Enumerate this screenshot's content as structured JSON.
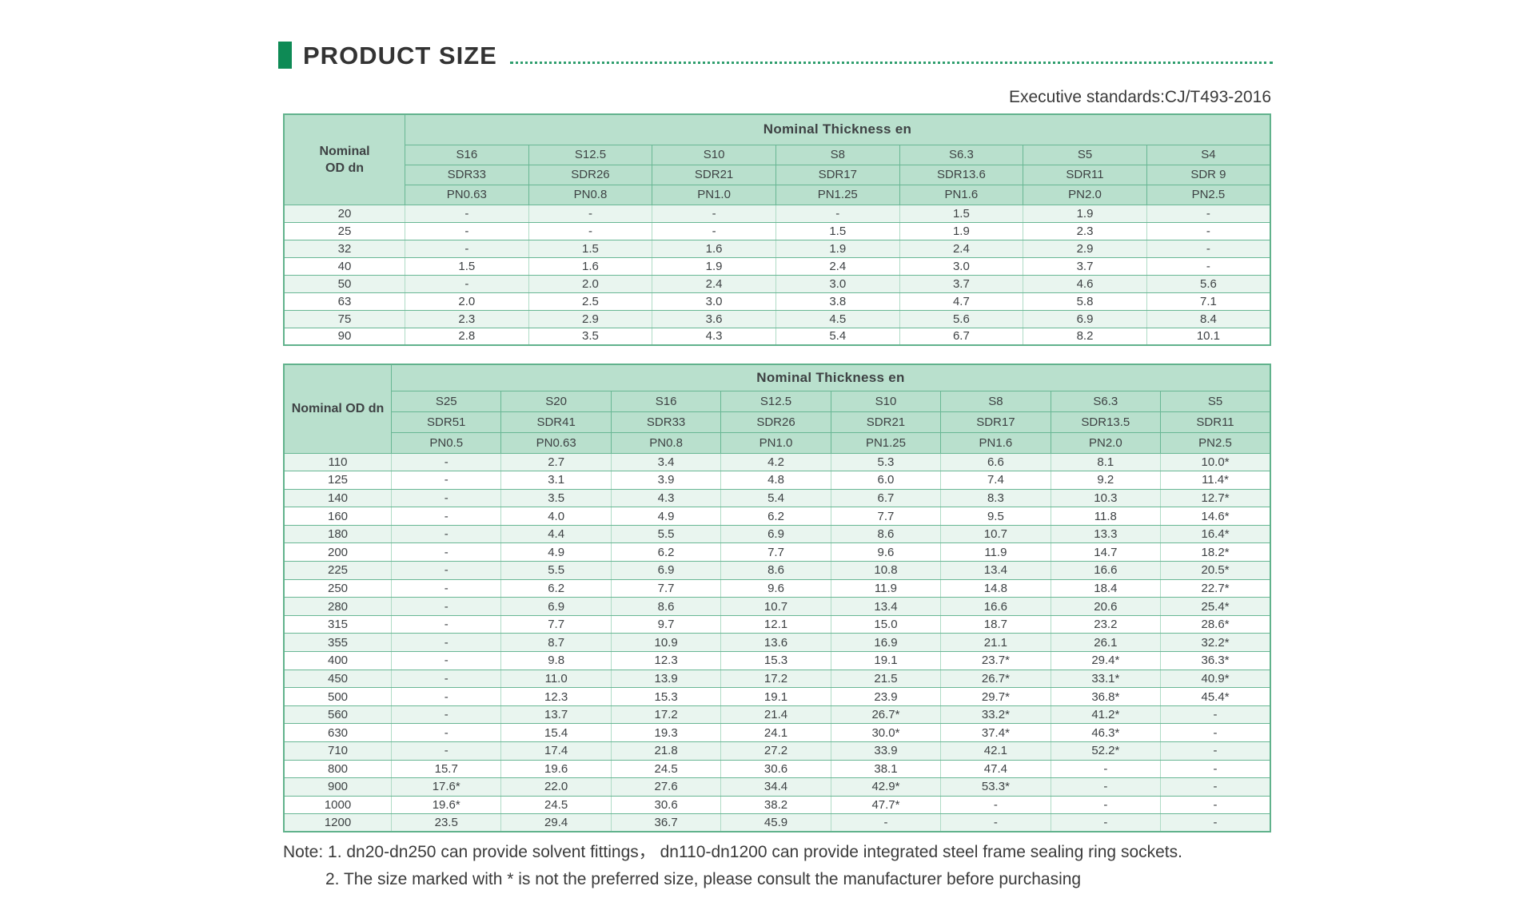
{
  "page": {
    "title": "PRODUCT SIZE",
    "standard": "Executive standards:CJ/T493-2016",
    "notes": [
      "Note: 1. dn20-dn250 can provide solvent fittings， dn110-dn1200 can provide integrated steel frame sealing ring sockets.",
      "2. The size marked with * is not the preferred size, please consult the manufacturer before purchasing"
    ]
  },
  "colors": {
    "accent_green": "#0e8a55",
    "dotted_leader_green": "#2f9e6e",
    "table_border_green": "#68b794",
    "header_bg": "#b9e0cd",
    "row_alt_bg": "#e9f5ef",
    "text": "#3e4244"
  },
  "tables": [
    {
      "corner_label_lines": [
        "Nominal",
        "OD dn"
      ],
      "span_header": "Nominal Thickness en",
      "s_row": [
        "S16",
        "S12.5",
        "S10",
        "S8",
        "S6.3",
        "S5",
        "S4"
      ],
      "sdr_row": [
        "SDR33",
        "SDR26",
        "SDR21",
        "SDR17",
        "SDR13.6",
        "SDR11",
        "SDR 9"
      ],
      "pn_row": [
        "PN0.63",
        "PN0.8",
        "PN1.0",
        "PN1.25",
        "PN1.6",
        "PN2.0",
        "PN2.5"
      ],
      "rows": [
        {
          "dn": "20",
          "values": [
            "-",
            "-",
            "-",
            "-",
            "1.5",
            "1.9",
            "-"
          ]
        },
        {
          "dn": "25",
          "values": [
            "-",
            "-",
            "-",
            "1.5",
            "1.9",
            "2.3",
            "-"
          ]
        },
        {
          "dn": "32",
          "values": [
            "-",
            "1.5",
            "1.6",
            "1.9",
            "2.4",
            "2.9",
            "-"
          ]
        },
        {
          "dn": "40",
          "values": [
            "1.5",
            "1.6",
            "1.9",
            "2.4",
            "3.0",
            "3.7",
            "-"
          ]
        },
        {
          "dn": "50",
          "values": [
            "-",
            "2.0",
            "2.4",
            "3.0",
            "3.7",
            "4.6",
            "5.6"
          ]
        },
        {
          "dn": "63",
          "values": [
            "2.0",
            "2.5",
            "3.0",
            "3.8",
            "4.7",
            "5.8",
            "7.1"
          ]
        },
        {
          "dn": "75",
          "values": [
            "2.3",
            "2.9",
            "3.6",
            "4.5",
            "5.6",
            "6.9",
            "8.4"
          ]
        },
        {
          "dn": "90",
          "values": [
            "2.8",
            "3.5",
            "4.3",
            "5.4",
            "6.7",
            "8.2",
            "10.1"
          ]
        }
      ]
    },
    {
      "corner_label_lines": [
        "Nominal OD dn"
      ],
      "span_header": "Nominal Thickness en",
      "s_row": [
        "S25",
        "S20",
        "S16",
        "S12.5",
        "S10",
        "S8",
        "S6.3",
        "S5"
      ],
      "sdr_row": [
        "SDR51",
        "SDR41",
        "SDR33",
        "SDR26",
        "SDR21",
        "SDR17",
        "SDR13.5",
        "SDR11"
      ],
      "pn_row": [
        "PN0.5",
        "PN0.63",
        "PN0.8",
        "PN1.0",
        "PN1.25",
        "PN1.6",
        "PN2.0",
        "PN2.5"
      ],
      "rows": [
        {
          "dn": "110",
          "values": [
            "-",
            "2.7",
            "3.4",
            "4.2",
            "5.3",
            "6.6",
            "8.1",
            "10.0*"
          ]
        },
        {
          "dn": "125",
          "values": [
            "-",
            "3.1",
            "3.9",
            "4.8",
            "6.0",
            "7.4",
            "9.2",
            "11.4*"
          ]
        },
        {
          "dn": "140",
          "values": [
            "-",
            "3.5",
            "4.3",
            "5.4",
            "6.7",
            "8.3",
            "10.3",
            "12.7*"
          ]
        },
        {
          "dn": "160",
          "values": [
            "-",
            "4.0",
            "4.9",
            "6.2",
            "7.7",
            "9.5",
            "11.8",
            "14.6*"
          ]
        },
        {
          "dn": "180",
          "values": [
            "-",
            "4.4",
            "5.5",
            "6.9",
            "8.6",
            "10.7",
            "13.3",
            "16.4*"
          ]
        },
        {
          "dn": "200",
          "values": [
            "-",
            "4.9",
            "6.2",
            "7.7",
            "9.6",
            "11.9",
            "14.7",
            "18.2*"
          ]
        },
        {
          "dn": "225",
          "values": [
            "-",
            "5.5",
            "6.9",
            "8.6",
            "10.8",
            "13.4",
            "16.6",
            "20.5*"
          ]
        },
        {
          "dn": "250",
          "values": [
            "-",
            "6.2",
            "7.7",
            "9.6",
            "11.9",
            "14.8",
            "18.4",
            "22.7*"
          ]
        },
        {
          "dn": "280",
          "values": [
            "-",
            "6.9",
            "8.6",
            "10.7",
            "13.4",
            "16.6",
            "20.6",
            "25.4*"
          ]
        },
        {
          "dn": "315",
          "values": [
            "-",
            "7.7",
            "9.7",
            "12.1",
            "15.0",
            "18.7",
            "23.2",
            "28.6*"
          ]
        },
        {
          "dn": "355",
          "values": [
            "-",
            "8.7",
            "10.9",
            "13.6",
            "16.9",
            "21.1",
            "26.1",
            "32.2*"
          ]
        },
        {
          "dn": "400",
          "values": [
            "-",
            "9.8",
            "12.3",
            "15.3",
            "19.1",
            "23.7*",
            "29.4*",
            "36.3*"
          ]
        },
        {
          "dn": "450",
          "values": [
            "-",
            "11.0",
            "13.9",
            "17.2",
            "21.5",
            "26.7*",
            "33.1*",
            "40.9*"
          ]
        },
        {
          "dn": "500",
          "values": [
            "-",
            "12.3",
            "15.3",
            "19.1",
            "23.9",
            "29.7*",
            "36.8*",
            "45.4*"
          ]
        },
        {
          "dn": "560",
          "values": [
            "-",
            "13.7",
            "17.2",
            "21.4",
            "26.7*",
            "33.2*",
            "41.2*",
            "-"
          ]
        },
        {
          "dn": "630",
          "values": [
            "-",
            "15.4",
            "19.3",
            "24.1",
            "30.0*",
            "37.4*",
            "46.3*",
            "-"
          ]
        },
        {
          "dn": "710",
          "values": [
            "-",
            "17.4",
            "21.8",
            "27.2",
            "33.9",
            "42.1",
            "52.2*",
            "-"
          ]
        },
        {
          "dn": "800",
          "values": [
            "15.7",
            "19.6",
            "24.5",
            "30.6",
            "38.1",
            "47.4",
            "-",
            "-"
          ]
        },
        {
          "dn": "900",
          "values": [
            "17.6*",
            "22.0",
            "27.6",
            "34.4",
            "42.9*",
            "53.3*",
            "-",
            "-"
          ]
        },
        {
          "dn": "1000",
          "values": [
            "19.6*",
            "24.5",
            "30.6",
            "38.2",
            "47.7*",
            "-",
            "-",
            "-"
          ]
        },
        {
          "dn": "1200",
          "values": [
            "23.5",
            "29.4",
            "36.7",
            "45.9",
            "-",
            "-",
            "-",
            "-"
          ]
        }
      ]
    }
  ]
}
